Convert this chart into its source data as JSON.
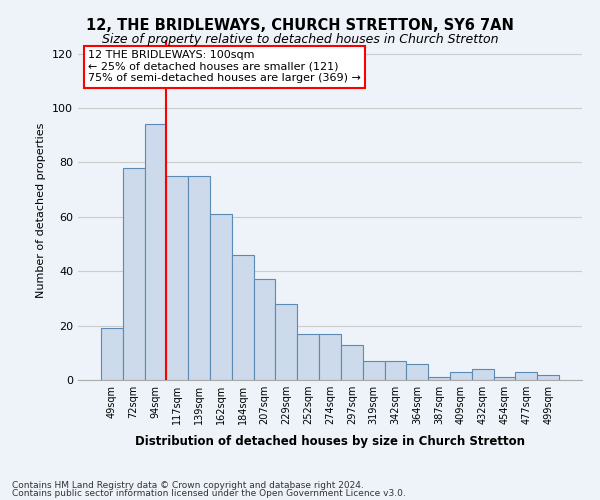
{
  "title": "12, THE BRIDLEWAYS, CHURCH STRETTON, SY6 7AN",
  "subtitle": "Size of property relative to detached houses in Church Stretton",
  "xlabel": "Distribution of detached houses by size in Church Stretton",
  "ylabel": "Number of detached properties",
  "categories": [
    "49sqm",
    "72sqm",
    "94sqm",
    "117sqm",
    "139sqm",
    "162sqm",
    "184sqm",
    "207sqm",
    "229sqm",
    "252sqm",
    "274sqm",
    "297sqm",
    "319sqm",
    "342sqm",
    "364sqm",
    "387sqm",
    "409sqm",
    "432sqm",
    "454sqm",
    "477sqm",
    "499sqm"
  ],
  "bar_heights": [
    19,
    78,
    94,
    75,
    75,
    61,
    46,
    37,
    28,
    17,
    17,
    13,
    7,
    7,
    6,
    1,
    3,
    4,
    1,
    3,
    2
  ],
  "bar_color": "#ccdaeb",
  "bar_edge_color": "#5b8ab5",
  "grid_color": "#cccccc",
  "background_color": "#eef2f9",
  "red_line_index": 2.5,
  "annotation_text": "12 THE BRIDLEWAYS: 100sqm\n← 25% of detached houses are smaller (121)\n75% of semi-detached houses are larger (369) →",
  "annotation_box_color": "white",
  "annotation_box_edge": "red",
  "ylim": [
    0,
    125
  ],
  "yticks": [
    0,
    20,
    40,
    60,
    80,
    100,
    120
  ],
  "footer1": "Contains HM Land Registry data © Crown copyright and database right 2024.",
  "footer2": "Contains public sector information licensed under the Open Government Licence v3.0."
}
